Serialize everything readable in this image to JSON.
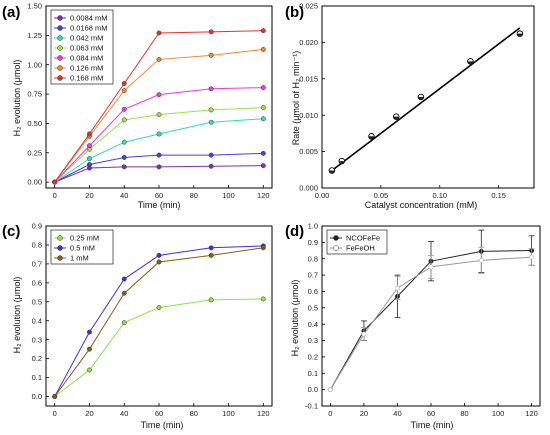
{
  "panels": [
    {
      "id": "a",
      "panel_label": "(a)",
      "xlabel": "Time (min)",
      "ylabel": "H₂ evolution (μmol)",
      "xlim": [
        -5,
        125
      ],
      "ylim": [
        -0.05,
        1.5
      ],
      "xticks": [
        0,
        20,
        40,
        60,
        80,
        100,
        120
      ],
      "yticks": [
        0.0,
        0.25,
        0.5,
        0.75,
        1.0,
        1.25,
        1.5
      ],
      "ytick_labels": [
        "0.00",
        "0.25",
        "0.50",
        "0.75",
        "1.00",
        "1.25",
        "1.50"
      ],
      "legend_position": "top-left",
      "chart_data": {
        "type": "line",
        "x": [
          0,
          20,
          40,
          60,
          90,
          120
        ],
        "series": [
          {
            "name": "0.0084 mM",
            "color": "#7b2fb5",
            "values": [
              0,
              0.12,
              0.13,
              0.13,
              0.135,
              0.14
            ]
          },
          {
            "name": "0.0168 mM",
            "color": "#4b3fd9",
            "values": [
              0,
              0.15,
              0.21,
              0.23,
              0.23,
              0.245
            ]
          },
          {
            "name": "0.042 mM",
            "color": "#2ee0b0",
            "values": [
              0,
              0.2,
              0.34,
              0.41,
              0.51,
              0.54
            ]
          },
          {
            "name": "0.063 mM",
            "color": "#9be04a",
            "values": [
              0,
              0.28,
              0.53,
              0.575,
              0.615,
              0.635
            ]
          },
          {
            "name": "0.084 mM",
            "color": "#e83be0",
            "values": [
              0,
              0.31,
              0.62,
              0.745,
              0.795,
              0.805
            ]
          },
          {
            "name": "0.126 mM",
            "color": "#f08a30",
            "values": [
              0,
              0.39,
              0.78,
              1.045,
              1.08,
              1.13
            ]
          },
          {
            "name": "0.168 mM",
            "color": "#e8302a",
            "values": [
              0,
              0.41,
              0.84,
              1.27,
              1.28,
              1.29
            ]
          }
        ]
      }
    },
    {
      "id": "b",
      "panel_label": "(b)",
      "xlabel": "Catalyst concentration (mM)",
      "ylabel": "Rate (μmol of H₂ min⁻¹)",
      "xlim": [
        0,
        0.18
      ],
      "ylim": [
        0,
        0.025
      ],
      "xticks": [
        0,
        0.05,
        0.1,
        0.15
      ],
      "xtick_labels": [
        "0.00",
        "0.05",
        "0.10",
        "0.15"
      ],
      "yticks": [
        0,
        0.005,
        0.01,
        0.015,
        0.02,
        0.025
      ],
      "ytick_labels": [
        "0.000",
        "0.005",
        "0.010",
        "0.015",
        "0.020",
        "0.025"
      ],
      "chart_data": {
        "type": "scatter",
        "points": {
          "x": [
            0.0084,
            0.0168,
            0.042,
            0.063,
            0.084,
            0.126,
            0.168
          ],
          "y": [
            0.0024,
            0.0037,
            0.0071,
            0.0098,
            0.0125,
            0.0174,
            0.0212
          ]
        },
        "fit_line": {
          "x": [
            0.0084,
            0.168
          ],
          "y": [
            0.0024,
            0.022
          ]
        }
      }
    },
    {
      "id": "c",
      "panel_label": "(c)",
      "xlabel": "Time (min)",
      "ylabel": "H₂ evolution (μmol)",
      "xlim": [
        -5,
        125
      ],
      "ylim": [
        -0.05,
        0.9
      ],
      "xticks": [
        0,
        20,
        40,
        60,
        80,
        100,
        120
      ],
      "yticks": [
        0.0,
        0.1,
        0.2,
        0.3,
        0.4,
        0.5,
        0.6,
        0.7,
        0.8,
        0.9
      ],
      "ytick_labels": [
        "0.0",
        "0.1",
        "0.2",
        "0.3",
        "0.4",
        "0.5",
        "0.6",
        "0.7",
        "0.8",
        "0.9"
      ],
      "legend_position": "top-left",
      "chart_data": {
        "type": "line",
        "x": [
          0,
          20,
          40,
          60,
          90,
          120
        ],
        "series": [
          {
            "name": "0.25 mM",
            "color": "#8ee04a",
            "values": [
              0,
              0.14,
              0.39,
              0.47,
              0.51,
              0.515
            ]
          },
          {
            "name": "0.5 mM",
            "color": "#3b30d9",
            "values": [
              0,
              0.34,
              0.62,
              0.745,
              0.785,
              0.795
            ]
          },
          {
            "name": "1 mM",
            "color": "#8a5a1a",
            "values": [
              0,
              0.25,
              0.545,
              0.71,
              0.745,
              0.785
            ]
          }
        ]
      }
    },
    {
      "id": "d",
      "panel_label": "(d)",
      "xlabel": "Time (min)",
      "ylabel": "H₂ evolution (μmol)",
      "xlim": [
        -5,
        125
      ],
      "ylim": [
        -0.1,
        1.0
      ],
      "xticks": [
        0,
        20,
        40,
        60,
        80,
        100,
        120
      ],
      "yticks": [
        -0.1,
        0.0,
        0.1,
        0.2,
        0.3,
        0.4,
        0.5,
        0.6,
        0.7,
        0.8,
        0.9,
        1.0
      ],
      "ytick_labels": [
        "-0.1",
        "0.0",
        "0.1",
        "0.2",
        "0.3",
        "0.4",
        "0.5",
        "0.6",
        "0.7",
        "0.8",
        "0.9",
        "1.0"
      ],
      "legend_position": "top-left",
      "chart_data": {
        "type": "line",
        "x": [
          0,
          20,
          40,
          60,
          90,
          120
        ],
        "series": [
          {
            "name": "NCOFeFe",
            "color": "#222222",
            "values": [
              0,
              0.36,
              0.57,
              0.785,
              0.845,
              0.85
            ],
            "errors": [
              0,
              0.06,
              0.13,
              0.12,
              0.13,
              0.09
            ]
          },
          {
            "name": "FeFeOH",
            "color": "#9a9a9a",
            "values": [
              0,
              0.34,
              0.62,
              0.75,
              0.79,
              0.81
            ],
            "errors": [
              0,
              0.04,
              0.07,
              0.07,
              0.08,
              0.05
            ]
          }
        ]
      }
    }
  ]
}
